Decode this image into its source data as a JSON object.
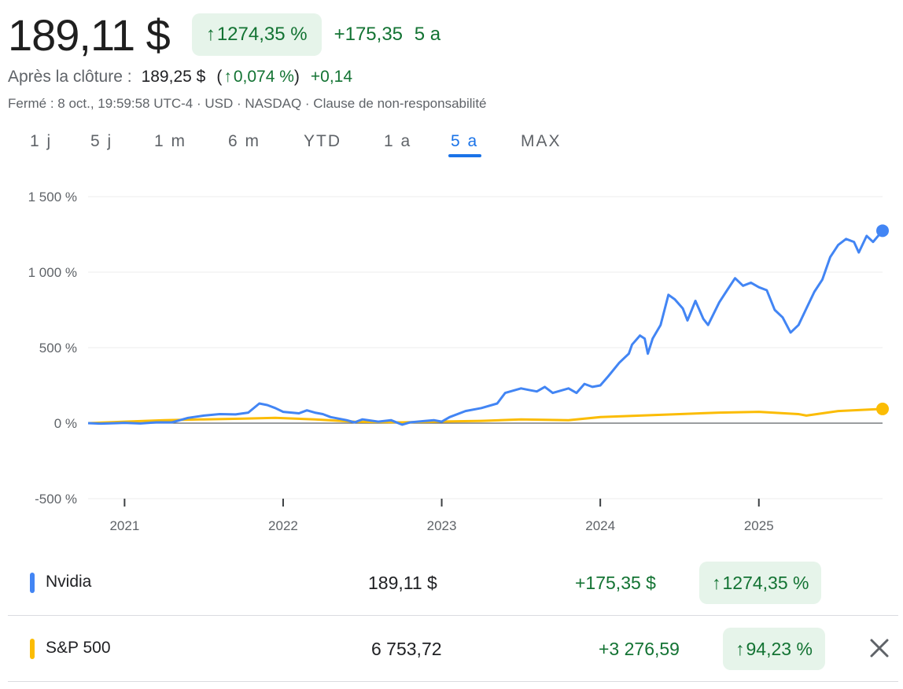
{
  "header": {
    "price": "189,11 $",
    "change_pct": "1274,35 %",
    "change_abs": "+175,35",
    "period": "5 a"
  },
  "after_hours": {
    "label": "Après la clôture :",
    "price": "189,25 $",
    "change_pct": "0,074 %",
    "change_abs": "+0,14"
  },
  "meta": {
    "closed": "Fermé : 8 oct., 19:59:58 UTC-4",
    "currency": "USD",
    "exchange": "NASDAQ",
    "disclaimer": "Clause de non-responsabilité"
  },
  "tabs": [
    {
      "label": "1 j"
    },
    {
      "label": "5 j"
    },
    {
      "label": "1 m"
    },
    {
      "label": "6 m"
    },
    {
      "label": "YTD"
    },
    {
      "label": "1 a"
    },
    {
      "label": "5 a",
      "active": true
    },
    {
      "label": "MAX"
    }
  ],
  "icons": {
    "up": "arrow-up-icon",
    "close": "close-icon"
  },
  "colors": {
    "nvidia": "#4285f4",
    "sp500": "#fbbc04",
    "positive": "#137333",
    "positive_bg": "#e6f4ea",
    "active_tab": "#1a73e8"
  },
  "chart_data": {
    "type": "line",
    "ylim": [
      -500,
      1500
    ],
    "yticks": [
      1500,
      1000,
      500,
      0,
      -500
    ],
    "ytick_labels": [
      "1 500 %",
      "1 000 %",
      "500 %",
      "0 %",
      "-500 %"
    ],
    "xticks": [
      2021,
      2022,
      2023,
      2024,
      2025
    ],
    "xtick_labels": [
      "2021",
      "2022",
      "2023",
      "2024",
      "2025"
    ],
    "xlim": [
      2020.77,
      2025.78
    ],
    "series": [
      {
        "name": "Nvidia",
        "color": "#4285f4",
        "points": [
          [
            2020.77,
            0
          ],
          [
            2020.85,
            -3
          ],
          [
            2020.95,
            0
          ],
          [
            2021.0,
            2
          ],
          [
            2021.1,
            -2
          ],
          [
            2021.2,
            5
          ],
          [
            2021.3,
            5
          ],
          [
            2021.4,
            35
          ],
          [
            2021.5,
            50
          ],
          [
            2021.6,
            60
          ],
          [
            2021.7,
            58
          ],
          [
            2021.78,
            70
          ],
          [
            2021.85,
            130
          ],
          [
            2021.9,
            120
          ],
          [
            2021.95,
            100
          ],
          [
            2022.0,
            75
          ],
          [
            2022.1,
            65
          ],
          [
            2022.15,
            85
          ],
          [
            2022.2,
            70
          ],
          [
            2022.25,
            60
          ],
          [
            2022.3,
            40
          ],
          [
            2022.4,
            20
          ],
          [
            2022.45,
            5
          ],
          [
            2022.5,
            25
          ],
          [
            2022.6,
            10
          ],
          [
            2022.68,
            20
          ],
          [
            2022.75,
            -10
          ],
          [
            2022.8,
            5
          ],
          [
            2022.9,
            15
          ],
          [
            2022.95,
            20
          ],
          [
            2023.0,
            10
          ],
          [
            2023.05,
            40
          ],
          [
            2023.15,
            80
          ],
          [
            2023.25,
            100
          ],
          [
            2023.35,
            130
          ],
          [
            2023.4,
            200
          ],
          [
            2023.5,
            230
          ],
          [
            2023.55,
            220
          ],
          [
            2023.6,
            210
          ],
          [
            2023.65,
            240
          ],
          [
            2023.7,
            200
          ],
          [
            2023.8,
            230
          ],
          [
            2023.85,
            200
          ],
          [
            2023.9,
            260
          ],
          [
            2023.95,
            240
          ],
          [
            2024.0,
            250
          ],
          [
            2024.05,
            310
          ],
          [
            2024.12,
            400
          ],
          [
            2024.18,
            460
          ],
          [
            2024.2,
            520
          ],
          [
            2024.25,
            580
          ],
          [
            2024.28,
            560
          ],
          [
            2024.3,
            460
          ],
          [
            2024.33,
            560
          ],
          [
            2024.38,
            650
          ],
          [
            2024.43,
            850
          ],
          [
            2024.47,
            820
          ],
          [
            2024.52,
            760
          ],
          [
            2024.55,
            680
          ],
          [
            2024.6,
            810
          ],
          [
            2024.65,
            690
          ],
          [
            2024.68,
            650
          ],
          [
            2024.75,
            800
          ],
          [
            2024.8,
            880
          ],
          [
            2024.85,
            960
          ],
          [
            2024.9,
            910
          ],
          [
            2024.95,
            930
          ],
          [
            2025.0,
            900
          ],
          [
            2025.05,
            880
          ],
          [
            2025.1,
            750
          ],
          [
            2025.15,
            700
          ],
          [
            2025.2,
            600
          ],
          [
            2025.25,
            650
          ],
          [
            2025.3,
            760
          ],
          [
            2025.35,
            870
          ],
          [
            2025.4,
            950
          ],
          [
            2025.45,
            1100
          ],
          [
            2025.5,
            1180
          ],
          [
            2025.55,
            1220
          ],
          [
            2025.6,
            1200
          ],
          [
            2025.63,
            1130
          ],
          [
            2025.68,
            1240
          ],
          [
            2025.72,
            1200
          ],
          [
            2025.78,
            1274.35
          ]
        ]
      },
      {
        "name": "S&P 500",
        "color": "#fbbc04",
        "points": [
          [
            2020.77,
            0
          ],
          [
            2021.0,
            10
          ],
          [
            2021.25,
            20
          ],
          [
            2021.5,
            25
          ],
          [
            2021.75,
            30
          ],
          [
            2021.95,
            35
          ],
          [
            2022.2,
            25
          ],
          [
            2022.45,
            10
          ],
          [
            2022.75,
            5
          ],
          [
            2022.95,
            10
          ],
          [
            2023.25,
            15
          ],
          [
            2023.5,
            25
          ],
          [
            2023.8,
            20
          ],
          [
            2024.0,
            40
          ],
          [
            2024.25,
            50
          ],
          [
            2024.5,
            60
          ],
          [
            2024.75,
            70
          ],
          [
            2025.0,
            75
          ],
          [
            2025.25,
            60
          ],
          [
            2025.3,
            50
          ],
          [
            2025.5,
            80
          ],
          [
            2025.78,
            94.23
          ]
        ]
      }
    ]
  },
  "legend": [
    {
      "name": "Nvidia",
      "color": "#4285f4",
      "price": "189,11 $",
      "change_abs": "+175,35 $",
      "change_pct": "1274,35 %",
      "removable": false
    },
    {
      "name": "S&P 500",
      "color": "#fbbc04",
      "price": "6 753,72",
      "change_abs": "+3 276,59",
      "change_pct": "94,23 %",
      "removable": true
    }
  ]
}
